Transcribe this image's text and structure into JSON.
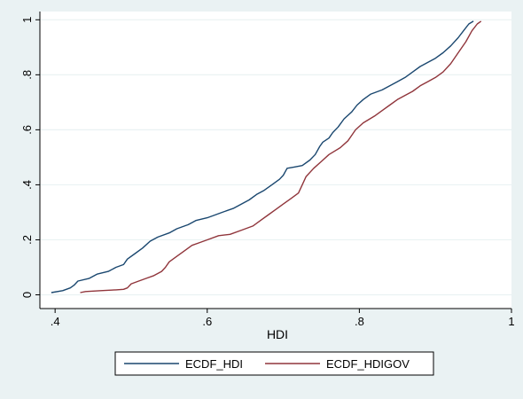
{
  "chart_data": {
    "type": "line",
    "xlabel": "HDI",
    "ylabel": "",
    "xlim": [
      0.38,
      1.0
    ],
    "ylim": [
      -0.05,
      1.03
    ],
    "xticks": [
      0.4,
      0.6,
      0.8,
      1.0
    ],
    "xtick_labels": [
      ".4",
      ".6",
      ".8",
      "1"
    ],
    "yticks": [
      0,
      0.2,
      0.4,
      0.6,
      0.8,
      1
    ],
    "ytick_labels": [
      "0",
      ".2",
      ".4",
      ".6",
      ".8",
      "1"
    ],
    "grid": "horizontal",
    "legend_position": "bottom",
    "series": [
      {
        "name": "ECDF_HDI",
        "color": "#1A476F",
        "points": [
          [
            0.395,
            0.008
          ],
          [
            0.41,
            0.015
          ],
          [
            0.42,
            0.025
          ],
          [
            0.425,
            0.035
          ],
          [
            0.43,
            0.05
          ],
          [
            0.445,
            0.06
          ],
          [
            0.455,
            0.075
          ],
          [
            0.47,
            0.085
          ],
          [
            0.48,
            0.1
          ],
          [
            0.49,
            0.11
          ],
          [
            0.495,
            0.13
          ],
          [
            0.505,
            0.15
          ],
          [
            0.515,
            0.17
          ],
          [
            0.525,
            0.195
          ],
          [
            0.535,
            0.21
          ],
          [
            0.55,
            0.225
          ],
          [
            0.56,
            0.24
          ],
          [
            0.575,
            0.255
          ],
          [
            0.585,
            0.27
          ],
          [
            0.6,
            0.28
          ],
          [
            0.61,
            0.29
          ],
          [
            0.62,
            0.3
          ],
          [
            0.635,
            0.315
          ],
          [
            0.645,
            0.33
          ],
          [
            0.655,
            0.345
          ],
          [
            0.665,
            0.365
          ],
          [
            0.675,
            0.38
          ],
          [
            0.685,
            0.4
          ],
          [
            0.695,
            0.42
          ],
          [
            0.7,
            0.435
          ],
          [
            0.705,
            0.46
          ],
          [
            0.715,
            0.465
          ],
          [
            0.725,
            0.47
          ],
          [
            0.735,
            0.49
          ],
          [
            0.742,
            0.51
          ],
          [
            0.748,
            0.54
          ],
          [
            0.752,
            0.555
          ],
          [
            0.76,
            0.57
          ],
          [
            0.765,
            0.59
          ],
          [
            0.772,
            0.61
          ],
          [
            0.78,
            0.64
          ],
          [
            0.79,
            0.665
          ],
          [
            0.797,
            0.69
          ],
          [
            0.805,
            0.71
          ],
          [
            0.815,
            0.73
          ],
          [
            0.83,
            0.745
          ],
          [
            0.84,
            0.76
          ],
          [
            0.85,
            0.775
          ],
          [
            0.86,
            0.79
          ],
          [
            0.87,
            0.81
          ],
          [
            0.88,
            0.83
          ],
          [
            0.89,
            0.845
          ],
          [
            0.9,
            0.86
          ],
          [
            0.91,
            0.88
          ],
          [
            0.92,
            0.905
          ],
          [
            0.93,
            0.935
          ],
          [
            0.937,
            0.96
          ],
          [
            0.944,
            0.985
          ],
          [
            0.95,
            0.995
          ]
        ]
      },
      {
        "name": "ECDF_HDIGOV",
        "color": "#90353B",
        "points": [
          [
            0.433,
            0.008
          ],
          [
            0.44,
            0.012
          ],
          [
            0.46,
            0.015
          ],
          [
            0.48,
            0.018
          ],
          [
            0.49,
            0.02
          ],
          [
            0.495,
            0.025
          ],
          [
            0.5,
            0.04
          ],
          [
            0.51,
            0.05
          ],
          [
            0.52,
            0.06
          ],
          [
            0.53,
            0.07
          ],
          [
            0.54,
            0.085
          ],
          [
            0.545,
            0.1
          ],
          [
            0.55,
            0.12
          ],
          [
            0.56,
            0.14
          ],
          [
            0.57,
            0.16
          ],
          [
            0.58,
            0.18
          ],
          [
            0.59,
            0.19
          ],
          [
            0.6,
            0.2
          ],
          [
            0.615,
            0.215
          ],
          [
            0.63,
            0.22
          ],
          [
            0.645,
            0.235
          ],
          [
            0.66,
            0.25
          ],
          [
            0.67,
            0.27
          ],
          [
            0.68,
            0.29
          ],
          [
            0.69,
            0.31
          ],
          [
            0.7,
            0.33
          ],
          [
            0.71,
            0.35
          ],
          [
            0.72,
            0.37
          ],
          [
            0.725,
            0.4
          ],
          [
            0.73,
            0.43
          ],
          [
            0.74,
            0.46
          ],
          [
            0.75,
            0.485
          ],
          [
            0.76,
            0.51
          ],
          [
            0.775,
            0.535
          ],
          [
            0.785,
            0.56
          ],
          [
            0.79,
            0.58
          ],
          [
            0.795,
            0.6
          ],
          [
            0.805,
            0.625
          ],
          [
            0.82,
            0.65
          ],
          [
            0.83,
            0.67
          ],
          [
            0.84,
            0.69
          ],
          [
            0.85,
            0.71
          ],
          [
            0.86,
            0.725
          ],
          [
            0.87,
            0.74
          ],
          [
            0.88,
            0.76
          ],
          [
            0.89,
            0.775
          ],
          [
            0.9,
            0.79
          ],
          [
            0.91,
            0.81
          ],
          [
            0.92,
            0.84
          ],
          [
            0.93,
            0.88
          ],
          [
            0.94,
            0.92
          ],
          [
            0.948,
            0.96
          ],
          [
            0.955,
            0.985
          ],
          [
            0.96,
            0.995
          ]
        ]
      }
    ]
  }
}
